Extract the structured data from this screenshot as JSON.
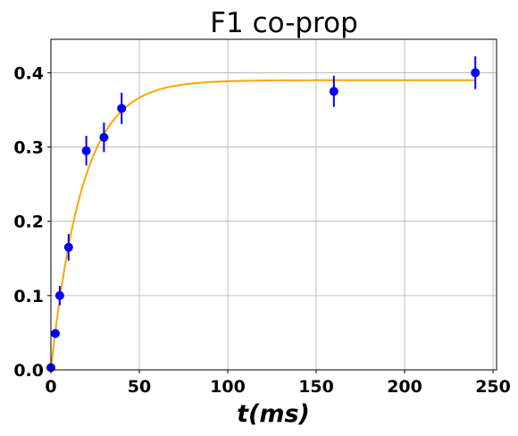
{
  "chart_data": {
    "type": "scatter",
    "title": "F1 co-prop",
    "xlabel": "t(ms)",
    "ylabel": "",
    "xlim": [
      0,
      252
    ],
    "ylim": [
      0,
      0.445
    ],
    "xticks": [
      0,
      50,
      100,
      150,
      200,
      250
    ],
    "yticks": [
      0.0,
      0.1,
      0.2,
      0.3,
      0.4
    ],
    "xtick_labels": [
      "0",
      "50",
      "100",
      "150",
      "200",
      "250"
    ],
    "ytick_labels": [
      "0.0",
      "0.1",
      "0.2",
      "0.3",
      "0.4"
    ],
    "grid": true,
    "series": [
      {
        "kind": "errorbar",
        "color": "#0000ff",
        "x": [
          0,
          2.5,
          5,
          10,
          20,
          30,
          40,
          160,
          240
        ],
        "y": [
          0.003,
          0.049,
          0.1,
          0.165,
          0.295,
          0.313,
          0.352,
          0.375,
          0.4
        ],
        "yerr": [
          0.0,
          0.0,
          0.013,
          0.018,
          0.02,
          0.02,
          0.021,
          0.021,
          0.022
        ]
      },
      {
        "kind": "line",
        "color": "#ffa500",
        "model": "asymptotic exponential",
        "asymptote": 0.39,
        "rate_per_ms": 0.056
      }
    ]
  }
}
